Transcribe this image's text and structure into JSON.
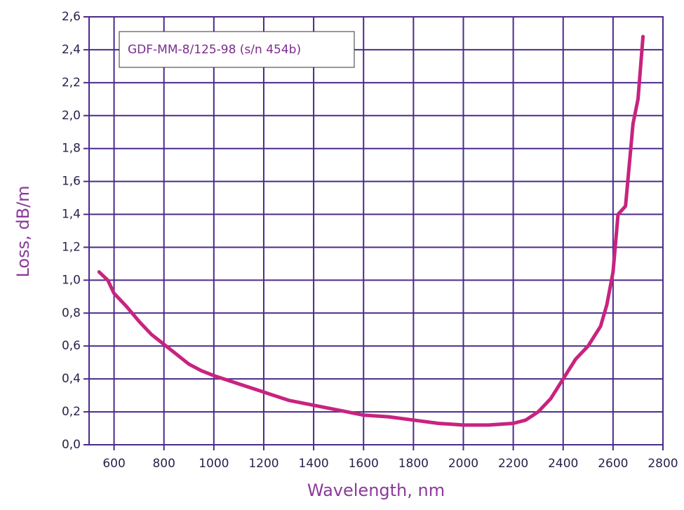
{
  "chart_data": {
    "type": "line",
    "x_label": "Wavelength, nm",
    "y_label": "Loss, dB/m",
    "xlim": [
      500,
      2800
    ],
    "ylim": [
      0,
      2.6
    ],
    "xticks": [
      600,
      800,
      1000,
      1200,
      1400,
      1600,
      1800,
      2000,
      2200,
      2400,
      2600,
      2800
    ],
    "yticks": [
      {
        "value": 0,
        "label": "0,0"
      },
      {
        "value": 0.2,
        "label": "0,2"
      },
      {
        "value": 0.4,
        "label": "0,4"
      },
      {
        "value": 0.6,
        "label": "0,6"
      },
      {
        "value": 0.8,
        "label": "0,8"
      },
      {
        "value": 1.0,
        "label": "1,0"
      },
      {
        "value": 1.2,
        "label": "1,2"
      },
      {
        "value": 1.4,
        "label": "1,4"
      },
      {
        "value": 1.6,
        "label": "1,6"
      },
      {
        "value": 1.8,
        "label": "1,8"
      },
      {
        "value": 2.0,
        "label": "2,0"
      },
      {
        "value": 2.2,
        "label": "2,2"
      },
      {
        "value": 2.4,
        "label": "2,4"
      },
      {
        "value": 2.6,
        "label": "2,6"
      }
    ],
    "grid": true,
    "legend": "upper left",
    "x": [
      540,
      575,
      600,
      650,
      700,
      750,
      800,
      850,
      900,
      950,
      1000,
      1100,
      1200,
      1300,
      1400,
      1500,
      1600,
      1700,
      1800,
      1900,
      2000,
      2100,
      2200,
      2250,
      2300,
      2350,
      2400,
      2450,
      2500,
      2550,
      2575,
      2600,
      2620,
      2650,
      2680,
      2700,
      2720
    ],
    "series": [
      {
        "name": "GDF-MM-8/125-98 (s/n 454b)",
        "color": "#c8237f",
        "values": [
          1.05,
          1.0,
          0.92,
          0.84,
          0.75,
          0.67,
          0.61,
          0.55,
          0.49,
          0.45,
          0.42,
          0.37,
          0.32,
          0.27,
          0.24,
          0.21,
          0.18,
          0.17,
          0.15,
          0.13,
          0.12,
          0.12,
          0.13,
          0.15,
          0.2,
          0.28,
          0.4,
          0.52,
          0.6,
          0.72,
          0.85,
          1.05,
          1.4,
          1.45,
          1.95,
          2.1,
          2.48
        ]
      }
    ]
  }
}
